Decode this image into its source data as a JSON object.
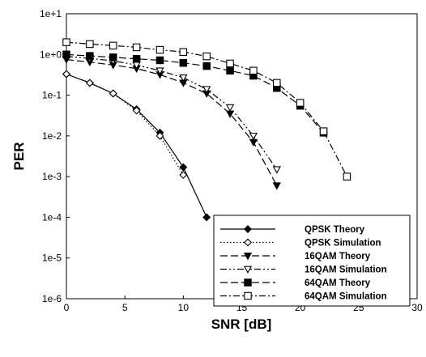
{
  "chart_data": {
    "type": "line",
    "title": "",
    "xlabel": "SNR [dB]",
    "ylabel": "PER",
    "xlim": [
      0,
      30
    ],
    "ylim": [
      1e-06,
      10
    ],
    "yscale": "log",
    "grid": false,
    "legend_position": "bottom-right",
    "x_tick_labels": [
      "0",
      "5",
      "10",
      "15",
      "20",
      "25",
      "30"
    ],
    "x_tick_values": [
      0,
      5,
      10,
      15,
      20,
      25,
      30
    ],
    "y_tick_labels": [
      "1e-6",
      "1e-5",
      "1e-4",
      "1e-3",
      "1e-2",
      "1e-1",
      "1e+0",
      "1e+1"
    ],
    "y_tick_values": [
      1e-06,
      1e-05,
      0.0001,
      0.001,
      0.01,
      0.1,
      1,
      10
    ],
    "series": [
      {
        "name": "QPSK Theory",
        "marker": "filled-diamond",
        "dash": "solid",
        "x": [
          0,
          2,
          4,
          6,
          8,
          10,
          12
        ],
        "y": [
          0.33,
          0.2,
          0.11,
          0.045,
          0.012,
          0.0017,
          0.0001
        ]
      },
      {
        "name": "QPSK Simulation",
        "marker": "open-diamond",
        "dash": "dotted",
        "x": [
          0,
          2,
          4,
          6,
          8,
          10
        ],
        "y": [
          0.33,
          0.2,
          0.11,
          0.042,
          0.01,
          0.0011
        ]
      },
      {
        "name": "16QAM Theory",
        "marker": "filled-triangle-down",
        "dash": "longdash",
        "x": [
          0,
          2,
          4,
          6,
          8,
          10,
          12,
          14,
          16,
          18
        ],
        "y": [
          0.75,
          0.65,
          0.55,
          0.45,
          0.32,
          0.2,
          0.11,
          0.035,
          0.007,
          0.0006
        ]
      },
      {
        "name": "16QAM Simulation",
        "marker": "open-triangle-down",
        "dash": "dashdotdot",
        "x": [
          0,
          2,
          4,
          6,
          8,
          10,
          12,
          14,
          16,
          18
        ],
        "y": [
          0.9,
          0.8,
          0.7,
          0.55,
          0.4,
          0.27,
          0.14,
          0.05,
          0.01,
          0.0015
        ]
      },
      {
        "name": "64QAM Theory",
        "marker": "filled-square",
        "dash": "longdash",
        "x": [
          0,
          2,
          4,
          6,
          8,
          10,
          12,
          14,
          16,
          18,
          20,
          22
        ],
        "y": [
          1.0,
          0.92,
          0.85,
          0.78,
          0.72,
          0.62,
          0.52,
          0.4,
          0.3,
          0.15,
          0.055,
          0.012
        ]
      },
      {
        "name": "64QAM Simulation",
        "marker": "open-square",
        "dash": "dashdot",
        "x": [
          0,
          2,
          4,
          6,
          8,
          10,
          12,
          14,
          16,
          18,
          20,
          22,
          24
        ],
        "y": [
          2.0,
          1.8,
          1.65,
          1.5,
          1.3,
          1.15,
          0.9,
          0.6,
          0.4,
          0.2,
          0.065,
          0.013,
          0.001
        ]
      }
    ]
  }
}
